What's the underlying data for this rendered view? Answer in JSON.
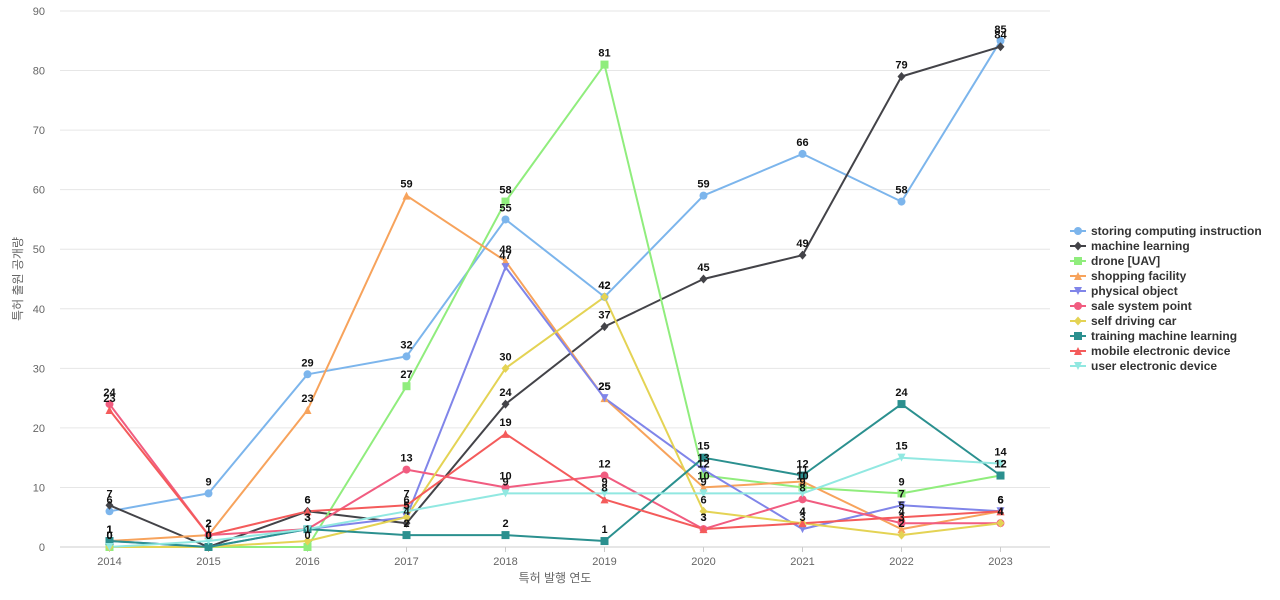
{
  "chart_data": {
    "type": "line",
    "xlabel": "특허 발행 연도",
    "ylabel": "특허 출원 공개량",
    "ylim": [
      0,
      90
    ],
    "yticks": [
      0,
      10,
      20,
      30,
      40,
      50,
      60,
      70,
      80,
      90
    ],
    "x": [
      "2014",
      "2015",
      "2016",
      "2017",
      "2018",
      "2019",
      "2020",
      "2021",
      "2022",
      "2023"
    ],
    "grid": true,
    "legend_position": "right",
    "series": [
      {
        "name": "storing computing instruction",
        "color": "#7cb5ec",
        "marker": "circle",
        "values": [
          6,
          9,
          29,
          32,
          55,
          42,
          59,
          66,
          58,
          85
        ]
      },
      {
        "name": "machine learning",
        "color": "#434348",
        "marker": "diamond",
        "values": [
          7,
          0,
          6,
          4,
          24,
          37,
          45,
          49,
          79,
          84
        ]
      },
      {
        "name": "drone [UAV]",
        "color": "#90ed7d",
        "marker": "square",
        "values": [
          0,
          0,
          0,
          27,
          58,
          81,
          12,
          10,
          9,
          12
        ]
      },
      {
        "name": "shopping facility",
        "color": "#f7a35c",
        "marker": "triangle",
        "values": [
          1,
          2,
          23,
          59,
          48,
          25,
          10,
          11,
          3,
          6
        ]
      },
      {
        "name": "physical object",
        "color": "#8085e9",
        "marker": "triangle-down",
        "values": [
          1,
          0,
          3,
          5,
          47,
          25,
          13,
          3,
          7,
          6
        ]
      },
      {
        "name": "sale system point",
        "color": "#f15c80",
        "marker": "circle",
        "values": [
          24,
          2,
          3,
          13,
          10,
          12,
          3,
          8,
          4,
          4
        ]
      },
      {
        "name": "self driving car",
        "color": "#e4d354",
        "marker": "diamond",
        "values": [
          0,
          0,
          1,
          5,
          30,
          42,
          6,
          4,
          2,
          4
        ]
      },
      {
        "name": "training machine learning",
        "color": "#2b908f",
        "marker": "square",
        "values": [
          1,
          0,
          3,
          2,
          2,
          1,
          15,
          12,
          24,
          12
        ]
      },
      {
        "name": "mobile electronic device",
        "color": "#f45b5b",
        "marker": "triangle",
        "values": [
          23,
          2,
          6,
          7,
          19,
          8,
          3,
          4,
          5,
          6
        ]
      },
      {
        "name": "user electronic device",
        "color": "#91e8e1",
        "marker": "triangle-down",
        "values": [
          0,
          1,
          3,
          6,
          9,
          9,
          9,
          9,
          15,
          14
        ]
      }
    ]
  }
}
